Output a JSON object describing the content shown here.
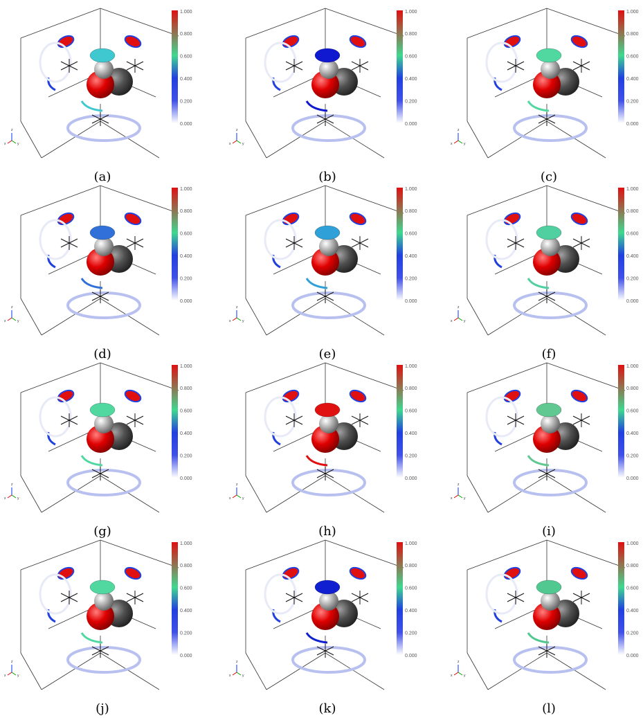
{
  "colorbar": {
    "ticks": [
      "1.000",
      "0.800",
      "0.600",
      "0.400",
      "0.200",
      "0.000"
    ]
  },
  "triad": {
    "z": "z",
    "x": "x",
    "y": "y"
  },
  "panels": [
    {
      "label": "(a)",
      "lobe_color": "#40c8d0"
    },
    {
      "label": "(b)",
      "lobe_color": "#1018d0"
    },
    {
      "label": "(c)",
      "lobe_color": "#50d8a0"
    },
    {
      "label": "(d)",
      "lobe_color": "#3070d8"
    },
    {
      "label": "(e)",
      "lobe_color": "#30a0d8"
    },
    {
      "label": "(f)",
      "lobe_color": "#50d0a0"
    },
    {
      "label": "(g)",
      "lobe_color": "#50d8a0"
    },
    {
      "label": "(h)",
      "lobe_color": "#e01010"
    },
    {
      "label": "(i)",
      "lobe_color": "#60c890"
    },
    {
      "label": "(j)",
      "lobe_color": "#50d8a0"
    },
    {
      "label": "(k)",
      "lobe_color": "#1020d0"
    },
    {
      "label": "(l)",
      "lobe_color": "#50c890"
    }
  ]
}
